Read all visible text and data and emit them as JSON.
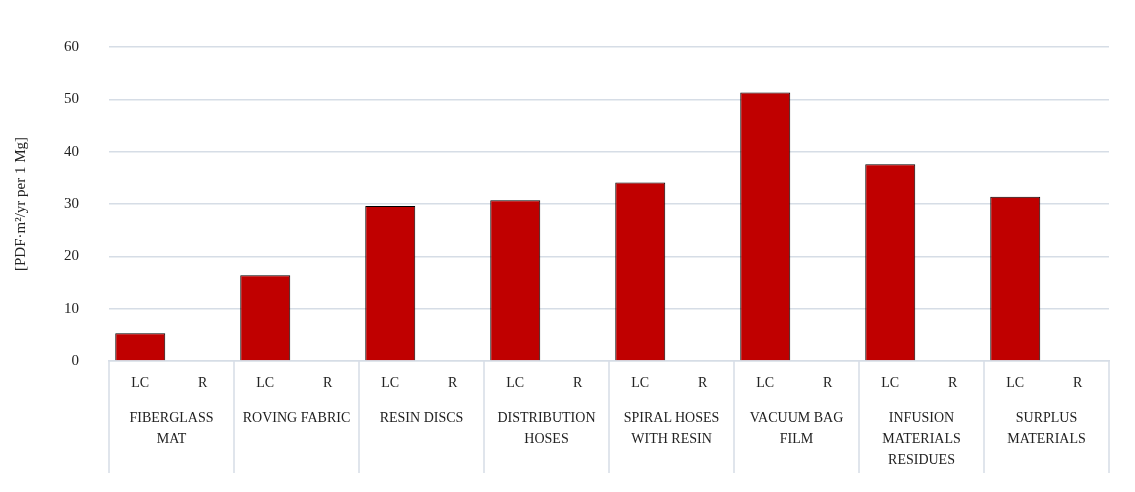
{
  "chart_data": {
    "type": "bar",
    "ylabel": "[PDF·m²/yr per 1 Mg]",
    "categories": [
      "FIBERGLASS MAT",
      "ROVING FABRIC",
      "RESIN DISCS",
      "DISTRIBUTION HOSES",
      "SPIRAL HOSES WITH RESIN",
      "VACUUM BAG FILM",
      "INFUSION MATERIALS RESIDUES",
      "SURPLUS MATERIALS"
    ],
    "series": [
      {
        "name": "LC",
        "color": "#c00000",
        "values": [
          5.3,
          16.4,
          29.6,
          30.7,
          34.1,
          51.3,
          37.6,
          31.4
        ]
      },
      {
        "name": "R",
        "values": [
          0,
          0,
          0,
          0,
          0,
          0,
          0,
          0
        ]
      }
    ],
    "ylim": [
      0,
      60
    ],
    "yticks": [
      0,
      10,
      20,
      30,
      40,
      50,
      60
    ],
    "grid": "y",
    "legend": false
  }
}
